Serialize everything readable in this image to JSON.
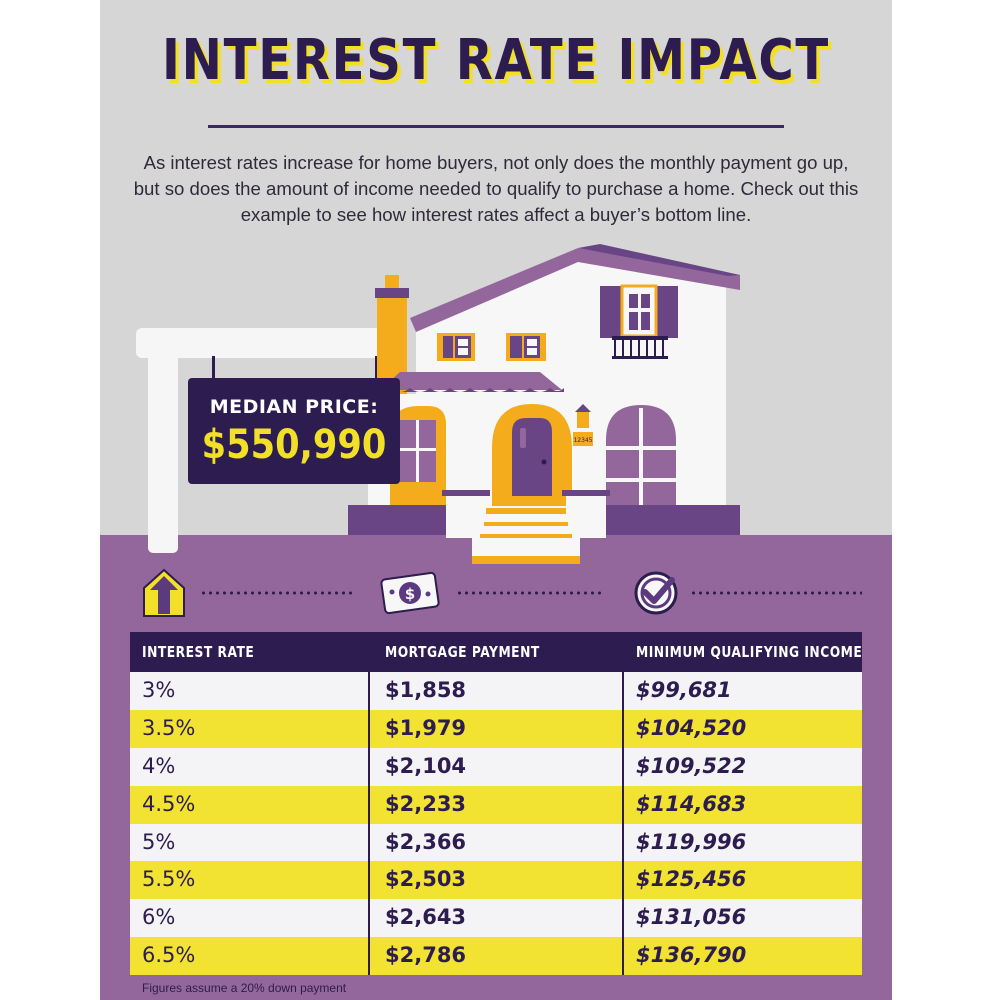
{
  "title": "INTEREST RATE IMPACT",
  "intro": "As interest rates increase for home buyers, not only does the monthly payment go up, but so does the amount of income needed to qualify to purchase a home. Check out this example to see how interest rates affect a buyer’s bottom line.",
  "sign": {
    "label": "MEDIAN PRICE:",
    "price": "$550,990"
  },
  "house": {
    "address_plate": "12345"
  },
  "icons": [
    "arrow-up-icon",
    "dollar-bill-icon",
    "checkmark-icon"
  ],
  "table": {
    "headers": [
      "INTEREST RATE",
      "MORTGAGE PAYMENT",
      "MINIMUM QUALIFYING INCOME"
    ],
    "rows": [
      {
        "rate": "3%",
        "payment": "$1,858",
        "income": "$99,681"
      },
      {
        "rate": "3.5%",
        "payment": "$1,979",
        "income": "$104,520"
      },
      {
        "rate": "4%",
        "payment": "$2,104",
        "income": "$109,522"
      },
      {
        "rate": "4.5%",
        "payment": "$2,233",
        "income": "$114,683"
      },
      {
        "rate": "5%",
        "payment": "$2,366",
        "income": "$119,996"
      },
      {
        "rate": "5.5%",
        "payment": "$2,503",
        "income": "$125,456"
      },
      {
        "rate": "6%",
        "payment": "$2,643",
        "income": "$131,056"
      },
      {
        "rate": "6.5%",
        "payment": "$2,786",
        "income": "$136,790"
      }
    ]
  },
  "footnote": "Figures assume a 20% down payment",
  "colors": {
    "dark_purple": "#2c1c4f",
    "purple": "#94679c",
    "mid_purple": "#6a4585",
    "yellow": "#f2e028",
    "orange": "#f5ac1c",
    "gray": "#d7d6d6"
  }
}
